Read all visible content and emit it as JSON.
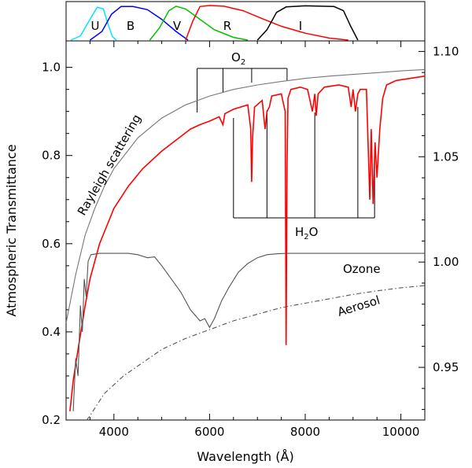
{
  "chart_data": {
    "type": "line",
    "xlabel": "Wavelength (Å)",
    "ylabel": "Atmospheric Transmittance",
    "xlim": [
      3000,
      10500
    ],
    "ylim": [
      0.2,
      1.06
    ],
    "ylim_right": [
      0.925,
      1.105
    ],
    "xticks": [
      {
        "value": 4000,
        "label": "4000"
      },
      {
        "value": 6000,
        "label": "6000"
      },
      {
        "value": 8000,
        "label": "8000"
      },
      {
        "value": 10000,
        "label": "10000"
      }
    ],
    "yticks": [
      {
        "value": 0.2,
        "label": "0.2"
      },
      {
        "value": 0.4,
        "label": "0.4"
      },
      {
        "value": 0.6,
        "label": "0.6"
      },
      {
        "value": 0.8,
        "label": "0.8"
      },
      {
        "value": 1.0,
        "label": "1.0"
      }
    ],
    "yticks_right": [
      {
        "value": 0.95,
        "label": "0.95"
      },
      {
        "value": 1.0,
        "label": "1.00"
      },
      {
        "value": 1.05,
        "label": "1.05"
      },
      {
        "value": 1.1,
        "label": "1.10"
      }
    ],
    "filters": [
      {
        "name": "U",
        "color": "#00e5ff",
        "points": [
          [
            3100,
            0
          ],
          [
            3300,
            0.12
          ],
          [
            3500,
            0.6
          ],
          [
            3650,
            0.95
          ],
          [
            3780,
            0.9
          ],
          [
            3880,
            0.45
          ],
          [
            3970,
            0.1
          ],
          [
            4050,
            0
          ]
        ]
      },
      {
        "name": "B",
        "color": "#0000ff",
        "points": [
          [
            3500,
            0
          ],
          [
            3750,
            0.25
          ],
          [
            3950,
            0.75
          ],
          [
            4150,
            0.97
          ],
          [
            4400,
            0.97
          ],
          [
            4700,
            0.88
          ],
          [
            5000,
            0.6
          ],
          [
            5300,
            0.25
          ],
          [
            5550,
            0
          ]
        ]
      },
      {
        "name": "V",
        "color": "#00c000",
        "points": [
          [
            4750,
            0
          ],
          [
            4950,
            0.35
          ],
          [
            5150,
            0.85
          ],
          [
            5300,
            0.98
          ],
          [
            5500,
            0.9
          ],
          [
            5800,
            0.6
          ],
          [
            6100,
            0.3
          ],
          [
            6500,
            0.08
          ],
          [
            6800,
            0
          ]
        ]
      },
      {
        "name": "R",
        "color": "#ff0000",
        "points": [
          [
            5500,
            0
          ],
          [
            5650,
            0.55
          ],
          [
            5800,
            0.97
          ],
          [
            6000,
            1.0
          ],
          [
            6300,
            0.98
          ],
          [
            6700,
            0.85
          ],
          [
            7100,
            0.62
          ],
          [
            7500,
            0.4
          ],
          [
            8000,
            0.2
          ],
          [
            8500,
            0.06
          ],
          [
            8900,
            0
          ]
        ]
      },
      {
        "name": "I",
        "color": "#000000",
        "points": [
          [
            7000,
            0
          ],
          [
            7200,
            0.3
          ],
          [
            7400,
            0.8
          ],
          [
            7600,
            0.96
          ],
          [
            8000,
            0.99
          ],
          [
            8600,
            0.97
          ],
          [
            8800,
            0.85
          ],
          [
            8950,
            0.4
          ],
          [
            9100,
            0
          ]
        ]
      }
    ],
    "series": [
      {
        "name": "Rayleigh scattering",
        "color": "#777777",
        "style": "solid",
        "points": [
          [
            3000,
            0.42
          ],
          [
            3200,
            0.53
          ],
          [
            3400,
            0.62
          ],
          [
            3600,
            0.68
          ],
          [
            3800,
            0.73
          ],
          [
            4000,
            0.77
          ],
          [
            4500,
            0.84
          ],
          [
            5000,
            0.885
          ],
          [
            5500,
            0.915
          ],
          [
            6000,
            0.935
          ],
          [
            6500,
            0.95
          ],
          [
            7000,
            0.96
          ],
          [
            7500,
            0.968
          ],
          [
            8000,
            0.975
          ],
          [
            8500,
            0.98
          ],
          [
            9000,
            0.984
          ],
          [
            9500,
            0.988
          ],
          [
            10000,
            0.992
          ],
          [
            10500,
            0.995
          ]
        ]
      },
      {
        "name": "Atmospheric transmittance",
        "color": "#ff0000",
        "style": "solid",
        "points": [
          [
            3080,
            0.22
          ],
          [
            3150,
            0.29
          ],
          [
            3250,
            0.36
          ],
          [
            3400,
            0.46
          ],
          [
            3500,
            0.52
          ],
          [
            3700,
            0.6
          ],
          [
            4000,
            0.68
          ],
          [
            4300,
            0.73
          ],
          [
            4600,
            0.77
          ],
          [
            5000,
            0.81
          ],
          [
            5300,
            0.835
          ],
          [
            5600,
            0.86
          ],
          [
            5800,
            0.87
          ],
          [
            6000,
            0.878
          ],
          [
            6200,
            0.888
          ],
          [
            6280,
            0.87
          ],
          [
            6320,
            0.895
          ],
          [
            6500,
            0.905
          ],
          [
            6800,
            0.915
          ],
          [
            6860,
            0.86
          ],
          [
            6880,
            0.74
          ],
          [
            6900,
            0.84
          ],
          [
            6940,
            0.91
          ],
          [
            7100,
            0.925
          ],
          [
            7160,
            0.86
          ],
          [
            7200,
            0.9
          ],
          [
            7250,
            0.91
          ],
          [
            7300,
            0.935
          ],
          [
            7500,
            0.94
          ],
          [
            7580,
            0.9
          ],
          [
            7600,
            0.37
          ],
          [
            7620,
            0.78
          ],
          [
            7640,
            0.93
          ],
          [
            7700,
            0.95
          ],
          [
            7900,
            0.955
          ],
          [
            8050,
            0.95
          ],
          [
            8150,
            0.9
          ],
          [
            8200,
            0.94
          ],
          [
            8230,
            0.89
          ],
          [
            8270,
            0.94
          ],
          [
            8400,
            0.955
          ],
          [
            8700,
            0.96
          ],
          [
            8900,
            0.955
          ],
          [
            8960,
            0.91
          ],
          [
            9000,
            0.95
          ],
          [
            9050,
            0.9
          ],
          [
            9100,
            0.94
          ],
          [
            9150,
            0.95
          ],
          [
            9280,
            0.95
          ],
          [
            9300,
            0.88
          ],
          [
            9350,
            0.7
          ],
          [
            9380,
            0.86
          ],
          [
            9420,
            0.69
          ],
          [
            9460,
            0.83
          ],
          [
            9500,
            0.75
          ],
          [
            9560,
            0.86
          ],
          [
            9620,
            0.93
          ],
          [
            9700,
            0.96
          ],
          [
            9900,
            0.97
          ],
          [
            10200,
            0.975
          ],
          [
            10500,
            0.98
          ]
        ]
      },
      {
        "name": "Ozone",
        "color": "#555555",
        "style": "solid",
        "points": [
          [
            3150,
            0.22
          ],
          [
            3200,
            0.34
          ],
          [
            3250,
            0.3
          ],
          [
            3300,
            0.46
          ],
          [
            3340,
            0.4
          ],
          [
            3380,
            0.52
          ],
          [
            3420,
            0.48
          ],
          [
            3460,
            0.56
          ],
          [
            3520,
            0.575
          ],
          [
            3700,
            0.578
          ],
          [
            4000,
            0.578
          ],
          [
            4300,
            0.578
          ],
          [
            4500,
            0.575
          ],
          [
            4700,
            0.568
          ],
          [
            4850,
            0.57
          ],
          [
            5000,
            0.55
          ],
          [
            5200,
            0.52
          ],
          [
            5400,
            0.49
          ],
          [
            5600,
            0.45
          ],
          [
            5800,
            0.425
          ],
          [
            5900,
            0.43
          ],
          [
            6000,
            0.41
          ],
          [
            6100,
            0.43
          ],
          [
            6250,
            0.47
          ],
          [
            6400,
            0.5
          ],
          [
            6600,
            0.535
          ],
          [
            6800,
            0.555
          ],
          [
            7000,
            0.568
          ],
          [
            7200,
            0.575
          ],
          [
            7400,
            0.577
          ],
          [
            7600,
            0.578
          ],
          [
            8000,
            0.578
          ],
          [
            9000,
            0.578
          ],
          [
            10500,
            0.578
          ]
        ]
      },
      {
        "name": "Aerosol",
        "color": "#555555",
        "style": "dashdot",
        "points": [
          [
            3300,
            0.18
          ],
          [
            3500,
            0.21
          ],
          [
            3800,
            0.26
          ],
          [
            4200,
            0.3
          ],
          [
            4600,
            0.33
          ],
          [
            5000,
            0.36
          ],
          [
            5500,
            0.385
          ],
          [
            6000,
            0.405
          ],
          [
            6500,
            0.425
          ],
          [
            7000,
            0.44
          ],
          [
            7500,
            0.455
          ],
          [
            8000,
            0.465
          ],
          [
            8500,
            0.475
          ],
          [
            9000,
            0.485
          ],
          [
            9500,
            0.493
          ],
          [
            10000,
            0.5
          ],
          [
            10500,
            0.505
          ]
        ]
      }
    ],
    "annotations": {
      "rayleigh": "Rayleigh scattering",
      "ozone": "Ozone",
      "aerosol": "Aerosol",
      "o2": "O",
      "o2_sub": "2",
      "h2o_h": "H",
      "h2o_sub": "2",
      "h2o_o": "O"
    },
    "o2_band_lines": [
      5740,
      6280,
      6880,
      7620
    ],
    "h2o_band_lines": [
      6500,
      7200,
      8200,
      9100,
      9450
    ]
  }
}
